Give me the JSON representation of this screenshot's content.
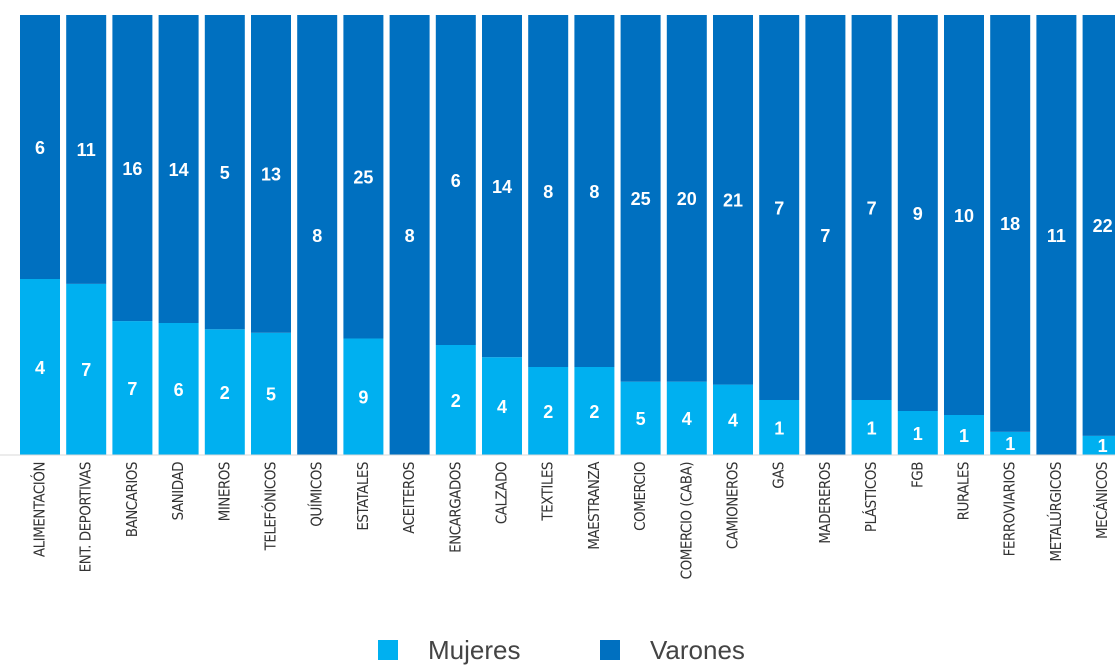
{
  "chart_data": {
    "type": "bar",
    "stacked": "percent",
    "categories": [
      "ALIMENTACIÓN",
      "ENT. DEPORTIVAS",
      "BANCARIOS",
      "SANIDAD",
      "MINEROS",
      "TELEFÓNICOS",
      "QUÍMICOS",
      "ESTATALES",
      "ACEITEROS",
      "ENCARGADOS",
      "CALZADO",
      "TEXTILES",
      "MAESTRANZA",
      "COMERCIO",
      "COMERCIO (CABA)",
      "CAMIONEROS",
      "GAS",
      "MADEREROS",
      "PLÁSTICOS",
      "FGB",
      "RURALES",
      "FERROVIARIOS",
      "METALÚRGICOS",
      "MECÁNICOS"
    ],
    "series": [
      {
        "name": "Mujeres",
        "color": "#00b0f0",
        "values": [
          4,
          7,
          7,
          6,
          2,
          5,
          0,
          9,
          0,
          2,
          4,
          2,
          2,
          5,
          4,
          4,
          1,
          0,
          1,
          1,
          1,
          1,
          0,
          1
        ]
      },
      {
        "name": "Varones",
        "color": "#0070c0",
        "values": [
          6,
          11,
          16,
          14,
          5,
          13,
          8,
          25,
          8,
          6,
          14,
          8,
          8,
          25,
          20,
          21,
          7,
          7,
          7,
          9,
          10,
          18,
          11,
          22
        ]
      }
    ]
  }
}
